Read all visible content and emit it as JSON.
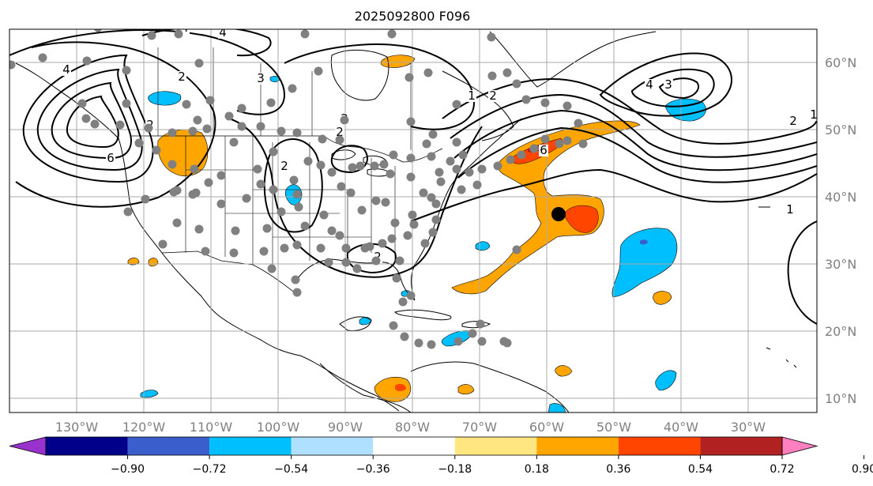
{
  "title": "2025092800 F096",
  "map": {
    "lon_range": [
      -140,
      -20
    ],
    "lat_range": [
      8,
      65
    ],
    "lon_ticks": [
      "130°W",
      "120°W",
      "110°W",
      "100°W",
      "90°W",
      "80°W",
      "70°W",
      "60°W",
      "50°W",
      "40°W",
      "30°W"
    ],
    "lat_ticks": [
      "10°N",
      "20°N",
      "30°N",
      "40°N",
      "50°N",
      "60°N"
    ],
    "gridlines": true,
    "contour_labels": [
      "4",
      "2",
      "6",
      "1",
      "2",
      "2",
      "2",
      "1",
      "2",
      "3",
      "4",
      "2",
      "3",
      "4",
      "1",
      "2",
      "6",
      "2",
      "4"
    ],
    "colors": {
      "pos1": "#ffe680",
      "pos2": "#ffa500",
      "pos3": "#ff4500",
      "pos4": "#b22222",
      "neg1": "#add8f8",
      "neg2": "#00bfff",
      "neg3": "#4169e1",
      "station_dot": "#808080",
      "center_marker": "#000000"
    }
  },
  "colorbar": {
    "ticks": [
      "−0.90",
      "−0.72",
      "−0.54",
      "−0.36",
      "−0.18",
      "0.18",
      "0.36",
      "0.54",
      "0.72",
      "0.90"
    ],
    "colors": [
      "#9932cc",
      "#00008b",
      "#3a5fcd",
      "#00bfff",
      "#b0e0ff",
      "#ffffff",
      "#ffe680",
      "#ffa500",
      "#ff4500",
      "#b22222",
      "#ff7fbf"
    ]
  }
}
